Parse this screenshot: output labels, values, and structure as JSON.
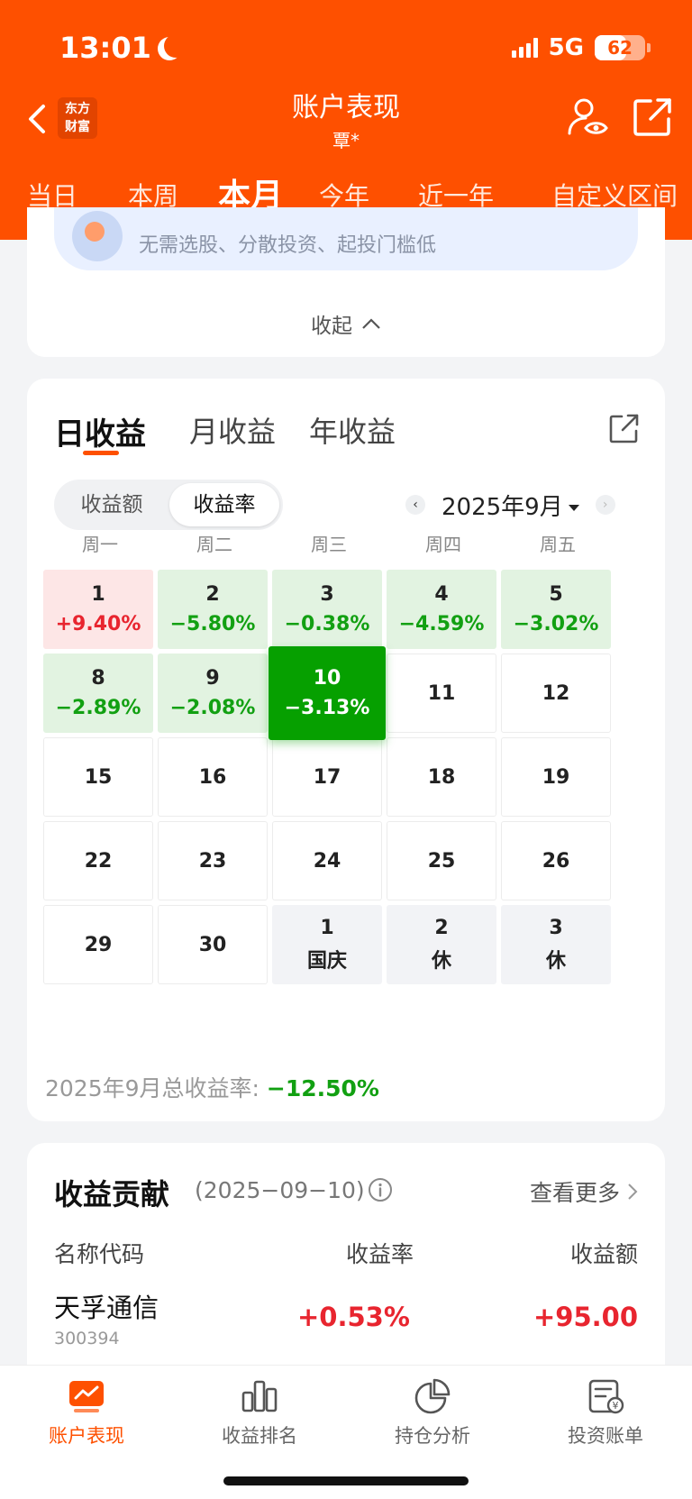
{
  "status": {
    "time": "13:01",
    "network": "5G",
    "battery": "62",
    "battery_level": 0.62
  },
  "header": {
    "title": "账户表现",
    "subtitle": "覃*",
    "brand_line1": "东方",
    "brand_line2": "财富",
    "icons": [
      "back-icon",
      "eye-user-icon",
      "share-icon"
    ]
  },
  "period_tabs": [
    "当日",
    "本周",
    "本月",
    "今年",
    "近一年",
    "自定义区间"
  ],
  "period_active": "本月",
  "promo": {
    "text": "无需选股、分散投资、起投门槛低",
    "collapse_label": "收起"
  },
  "profit_tabs": [
    "日收益",
    "月收益",
    "年收益"
  ],
  "toggle": [
    "收益额",
    "收益率"
  ],
  "calendar": {
    "month_label": "2025年9月",
    "weekdays": [
      "周一",
      "周二",
      "周三",
      "周四",
      "周五"
    ],
    "rows": [
      [
        {
          "d": "1",
          "v": "+9.40%",
          "t": "up"
        },
        {
          "d": "2",
          "v": "−5.80%",
          "t": "down"
        },
        {
          "d": "3",
          "v": "−0.38%",
          "t": "down"
        },
        {
          "d": "4",
          "v": "−4.59%",
          "t": "down"
        },
        {
          "d": "5",
          "v": "−3.02%",
          "t": "down"
        }
      ],
      [
        {
          "d": "8",
          "v": "−2.89%",
          "t": "down"
        },
        {
          "d": "9",
          "v": "−2.08%",
          "t": "down"
        },
        {
          "d": "10",
          "v": "−3.13%",
          "t": "selected"
        },
        {
          "d": "11",
          "v": "",
          "t": "plain"
        },
        {
          "d": "12",
          "v": "",
          "t": "plain"
        }
      ],
      [
        {
          "d": "15",
          "v": "",
          "t": "plain"
        },
        {
          "d": "16",
          "v": "",
          "t": "plain"
        },
        {
          "d": "17",
          "v": "",
          "t": "plain"
        },
        {
          "d": "18",
          "v": "",
          "t": "plain"
        },
        {
          "d": "19",
          "v": "",
          "t": "plain"
        }
      ],
      [
        {
          "d": "22",
          "v": "",
          "t": "plain"
        },
        {
          "d": "23",
          "v": "",
          "t": "plain"
        },
        {
          "d": "24",
          "v": "",
          "t": "plain"
        },
        {
          "d": "25",
          "v": "",
          "t": "plain"
        },
        {
          "d": "26",
          "v": "",
          "t": "plain"
        }
      ],
      [
        {
          "d": "29",
          "v": "",
          "t": "plain"
        },
        {
          "d": "30",
          "v": "",
          "t": "plain"
        },
        {
          "d": "1",
          "v": "国庆",
          "t": "holiday"
        },
        {
          "d": "2",
          "v": "休",
          "t": "holiday"
        },
        {
          "d": "3",
          "v": "休",
          "t": "holiday"
        }
      ]
    ],
    "total_label": "2025年9月总收益率:",
    "total_value": "−12.50%"
  },
  "contribution": {
    "title": "收益贡献",
    "date": "(2025−09−10)",
    "more": "查看更多",
    "columns": [
      "名称代码",
      "收益率",
      "收益额"
    ],
    "rows": [
      {
        "name": "天孚通信",
        "code": "300394",
        "rate": "+0.53%",
        "amount": "+95.00"
      }
    ]
  },
  "bottom_nav": [
    "账户表现",
    "收益排名",
    "持仓分析",
    "投资账单"
  ],
  "colors": {
    "brand": "#fe5000",
    "up": "#e8252f",
    "down": "#12a012",
    "selected": "#06a000"
  }
}
